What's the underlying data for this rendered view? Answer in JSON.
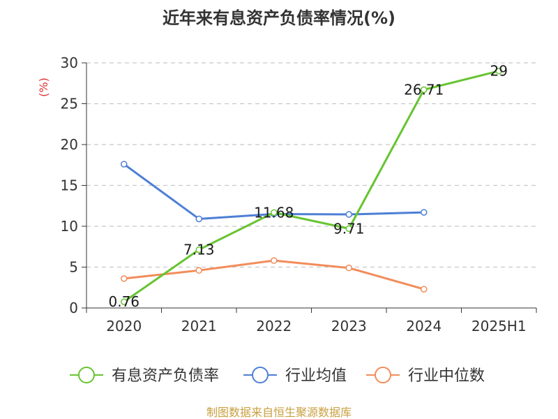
{
  "chart_data": {
    "type": "line",
    "title": "近年来有息资产负债率情况(%)",
    "ylabel": "(%)",
    "categories": [
      "2020",
      "2021",
      "2022",
      "2023",
      "2024",
      "2025H1"
    ],
    "yticks": [
      "0",
      "5",
      "10",
      "15",
      "20",
      "25",
      "30"
    ],
    "ylim": [
      0,
      30
    ],
    "grid": true,
    "legend_position": "bottom",
    "series": [
      {
        "name": "有息资产负债率",
        "color": "#66c431",
        "values": [
          0.76,
          7.13,
          11.68,
          9.71,
          26.71,
          29
        ],
        "data_labels": [
          "0.76",
          "7.13",
          "11.68",
          "9.71",
          "26.71",
          "29"
        ]
      },
      {
        "name": "行业均值",
        "color": "#4d7fd6",
        "values": [
          17.6,
          10.9,
          11.5,
          11.45,
          11.7,
          null
        ]
      },
      {
        "name": "行业中位数",
        "color": "#f28c5a",
        "values": [
          3.6,
          4.6,
          5.8,
          4.9,
          2.3,
          null
        ]
      }
    ],
    "source": "制图数据来自恒生聚源数据库"
  }
}
